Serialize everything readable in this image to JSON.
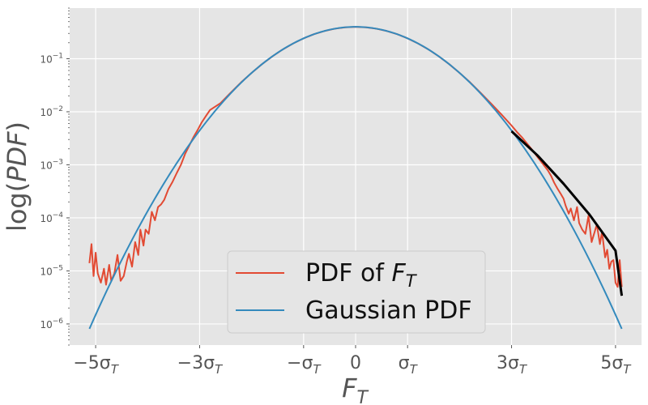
{
  "chart_data": {
    "type": "line",
    "scale": {
      "x": "linear",
      "y": "log"
    },
    "xlabel": "F_T",
    "ylabel": "log(PDF)",
    "xlim": [
      -5.5,
      5.5
    ],
    "ylim": [
      4e-07,
      0.9
    ],
    "grid": true,
    "legend_position": "lower-center",
    "x_ticks": [
      {
        "value": -5,
        "main": "−5σ",
        "sub": "T"
      },
      {
        "value": -3,
        "main": "−3σ",
        "sub": "T"
      },
      {
        "value": -1,
        "main": "−σ",
        "sub": "T"
      },
      {
        "value": 0,
        "main": "0",
        "sub": ""
      },
      {
        "value": 1,
        "main": "σ",
        "sub": "T"
      },
      {
        "value": 3,
        "main": "3σ",
        "sub": "T"
      },
      {
        "value": 5,
        "main": "5σ",
        "sub": "T"
      }
    ],
    "y_ticks": [
      {
        "value": 1e-06,
        "base": "10",
        "exp": "−6"
      },
      {
        "value": 1e-05,
        "base": "10",
        "exp": "−5"
      },
      {
        "value": 0.0001,
        "base": "10",
        "exp": "−4"
      },
      {
        "value": 0.001,
        "base": "10",
        "exp": "−3"
      },
      {
        "value": 0.01,
        "base": "10",
        "exp": "−2"
      },
      {
        "value": 0.1,
        "base": "10",
        "exp": "−1"
      }
    ],
    "series": [
      {
        "name": "PDF of F_T",
        "color": "#e24a33",
        "style": "noisy",
        "points": [
          [
            -5.12,
            1.4e-05
          ],
          [
            -5.08,
            3.2e-05
          ],
          [
            -5.04,
            8e-06
          ],
          [
            -5.0,
            2.2e-05
          ],
          [
            -4.96,
            9e-06
          ],
          [
            -4.9,
            6e-06
          ],
          [
            -4.84,
            1.1e-05
          ],
          [
            -4.8,
            5.5e-06
          ],
          [
            -4.74,
            1.3e-05
          ],
          [
            -4.7,
            6.5e-06
          ],
          [
            -4.64,
            9e-06
          ],
          [
            -4.58,
            2e-05
          ],
          [
            -4.52,
            6.5e-06
          ],
          [
            -4.46,
            8e-06
          ],
          [
            -4.4,
            1.5e-05
          ],
          [
            -4.36,
            2.1e-05
          ],
          [
            -4.3,
            1.2e-05
          ],
          [
            -4.24,
            3.5e-05
          ],
          [
            -4.18,
            2e-05
          ],
          [
            -4.14,
            6e-05
          ],
          [
            -4.08,
            3e-05
          ],
          [
            -4.04,
            6e-05
          ],
          [
            -3.98,
            5e-05
          ],
          [
            -3.92,
            0.00013
          ],
          [
            -3.86,
            9e-05
          ],
          [
            -3.8,
            0.00016
          ],
          [
            -3.74,
            0.00018
          ],
          [
            -3.68,
            0.00022
          ],
          [
            -3.6,
            0.00035
          ],
          [
            -3.52,
            0.00048
          ],
          [
            -3.44,
            0.0007
          ],
          [
            -3.36,
            0.001
          ],
          [
            -3.28,
            0.0016
          ],
          [
            -3.2,
            0.0023
          ],
          [
            -3.12,
            0.0033
          ],
          [
            -3.04,
            0.0045
          ],
          [
            -2.96,
            0.0063
          ],
          [
            -2.88,
            0.0083
          ],
          [
            -2.8,
            0.0108
          ],
          [
            -2.6,
            0.0145
          ],
          [
            -2.4,
            0.023
          ],
          [
            -2.2,
            0.036
          ],
          [
            -2.0,
            0.054
          ],
          [
            -1.8,
            0.079
          ],
          [
            -1.6,
            0.111
          ],
          [
            -1.4,
            0.15
          ],
          [
            -1.2,
            0.194
          ],
          [
            -1.0,
            0.242
          ],
          [
            -0.8,
            0.29
          ],
          [
            -0.6,
            0.333
          ],
          [
            -0.4,
            0.368
          ],
          [
            -0.2,
            0.391
          ],
          [
            0.0,
            0.399
          ],
          [
            0.2,
            0.391
          ],
          [
            0.4,
            0.368
          ],
          [
            0.6,
            0.333
          ],
          [
            0.8,
            0.29
          ],
          [
            1.0,
            0.242
          ],
          [
            1.2,
            0.194
          ],
          [
            1.4,
            0.15
          ],
          [
            1.6,
            0.111
          ],
          [
            1.8,
            0.079
          ],
          [
            2.0,
            0.054
          ],
          [
            2.2,
            0.036
          ],
          [
            2.4,
            0.023
          ],
          [
            2.6,
            0.0145
          ],
          [
            2.8,
            0.009
          ],
          [
            3.0,
            0.0055
          ],
          [
            3.1,
            0.0042
          ],
          [
            3.2,
            0.0033
          ],
          [
            3.3,
            0.0025
          ],
          [
            3.4,
            0.0019
          ],
          [
            3.5,
            0.0014
          ],
          [
            3.6,
            0.00105
          ],
          [
            3.7,
            0.00078
          ],
          [
            3.76,
            0.00062
          ],
          [
            3.82,
            0.00046
          ],
          [
            3.88,
            0.00036
          ],
          [
            3.94,
            0.00029
          ],
          [
            4.0,
            0.00023
          ],
          [
            4.04,
            0.00017
          ],
          [
            4.1,
            0.00012
          ],
          [
            4.14,
            0.00015
          ],
          [
            4.2,
            9e-05
          ],
          [
            4.26,
            0.00016
          ],
          [
            4.3,
            8e-05
          ],
          [
            4.36,
            6e-05
          ],
          [
            4.42,
            5e-05
          ],
          [
            4.48,
            0.00011
          ],
          [
            4.54,
            3.5e-05
          ],
          [
            4.6,
            5.5e-05
          ],
          [
            4.64,
            7.5e-05
          ],
          [
            4.7,
            3.2e-05
          ],
          [
            4.74,
            5.5e-05
          ],
          [
            4.8,
            1.8e-05
          ],
          [
            4.84,
            2.5e-05
          ],
          [
            4.88,
            1.1e-05
          ],
          [
            4.92,
            1.5e-05
          ],
          [
            4.96,
            1.6e-05
          ],
          [
            5.0,
            6e-06
          ],
          [
            5.04,
            5e-06
          ],
          [
            5.08,
            1.6e-05
          ],
          [
            5.12,
            5e-06
          ]
        ]
      },
      {
        "name": "Gaussian PDF",
        "color": "#348abd",
        "style": "gaussian",
        "x_range": [
          -5.12,
          5.12
        ],
        "mean": 0,
        "std": 1
      },
      {
        "name": "",
        "color": "#000000",
        "style": "fit",
        "points": [
          [
            3.0,
            0.0043
          ],
          [
            3.5,
            0.0015
          ],
          [
            4.0,
            0.00044
          ],
          [
            4.5,
            0.000115
          ],
          [
            5.0,
            2.4e-05
          ],
          [
            5.12,
            3.4e-06
          ]
        ]
      }
    ],
    "legend": [
      {
        "label_main": "PDF of ",
        "label_var": "F",
        "label_sub": "T",
        "color": "#e24a33"
      },
      {
        "label_main": "Gaussian PDF",
        "label_var": "",
        "label_sub": "",
        "color": "#348abd"
      }
    ]
  }
}
